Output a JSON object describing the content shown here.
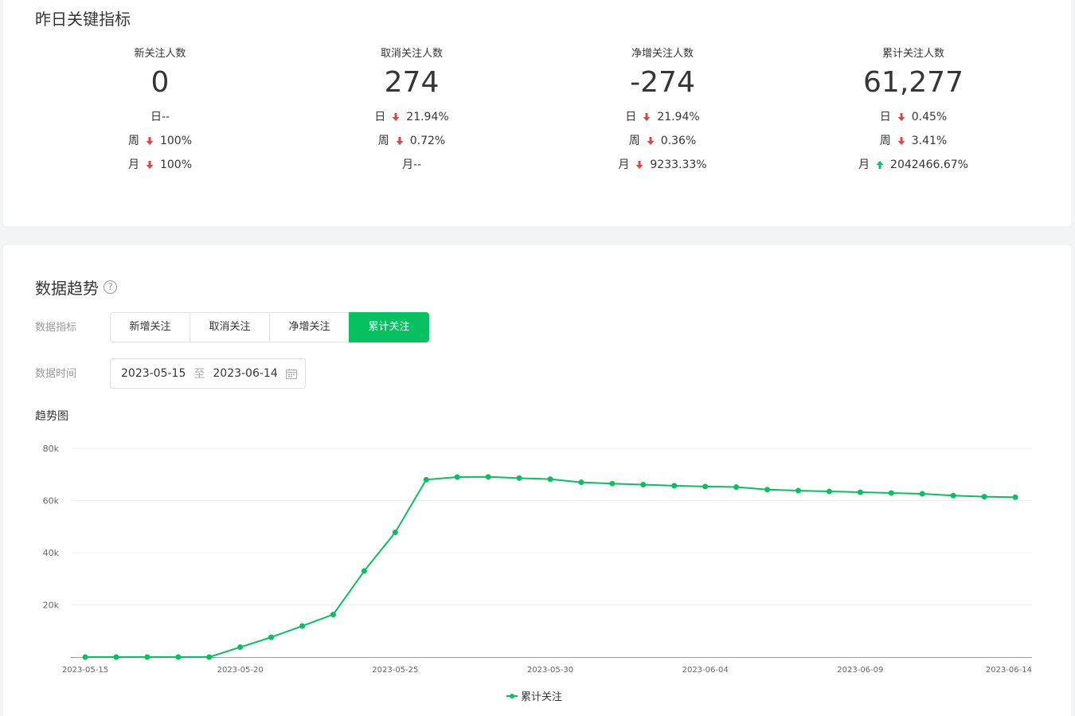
{
  "metrics_section": {
    "title": "昨日关键指标",
    "cards": [
      {
        "title": "新关注人数",
        "value": "0",
        "rows": [
          {
            "label": "日",
            "dir": "none",
            "value": "--"
          },
          {
            "label": "周",
            "dir": "down",
            "value": "100%"
          },
          {
            "label": "月",
            "dir": "down",
            "value": "100%"
          }
        ]
      },
      {
        "title": "取消关注人数",
        "value": "274",
        "rows": [
          {
            "label": "日",
            "dir": "down",
            "value": "21.94%"
          },
          {
            "label": "周",
            "dir": "down",
            "value": "0.72%"
          },
          {
            "label": "月",
            "dir": "none",
            "value": "--"
          }
        ]
      },
      {
        "title": "净增关注人数",
        "value": "-274",
        "rows": [
          {
            "label": "日",
            "dir": "down",
            "value": "21.94%"
          },
          {
            "label": "周",
            "dir": "down",
            "value": "0.36%"
          },
          {
            "label": "月",
            "dir": "down",
            "value": "9233.33%"
          }
        ]
      },
      {
        "title": "累计关注人数",
        "value": "61,277",
        "rows": [
          {
            "label": "日",
            "dir": "down",
            "value": "0.45%"
          },
          {
            "label": "周",
            "dir": "down",
            "value": "3.41%"
          },
          {
            "label": "月",
            "dir": "up",
            "value": "2042466.67%"
          }
        ]
      }
    ]
  },
  "trend_section": {
    "title": "数据趋势",
    "help_icon": "question-circle-icon",
    "metric_label": "数据指标",
    "metric_tabs": [
      "新增关注",
      "取消关注",
      "净增关注",
      "累计关注"
    ],
    "active_tab": 3,
    "time_label": "数据时间",
    "date_start": "2023-05-15",
    "date_sep": "至",
    "date_end": "2023-06-14",
    "calendar_icon": "calendar-icon",
    "chart_title": "趋势图"
  },
  "colors": {
    "accent": "#07c160",
    "down": "#e64340",
    "up": "#07c160"
  },
  "chart_data": {
    "type": "line",
    "x": [
      "2023-05-15",
      "2023-05-16",
      "2023-05-17",
      "2023-05-18",
      "2023-05-19",
      "2023-05-20",
      "2023-05-21",
      "2023-05-22",
      "2023-05-23",
      "2023-05-24",
      "2023-05-25",
      "2023-05-26",
      "2023-05-27",
      "2023-05-28",
      "2023-05-29",
      "2023-05-30",
      "2023-05-31",
      "2023-06-01",
      "2023-06-02",
      "2023-06-03",
      "2023-06-04",
      "2023-06-05",
      "2023-06-06",
      "2023-06-07",
      "2023-06-08",
      "2023-06-09",
      "2023-06-10",
      "2023-06-11",
      "2023-06-12",
      "2023-06-13",
      "2023-06-14"
    ],
    "x_tick_labels": [
      "2023-05-15",
      "2023-05-20",
      "2023-05-25",
      "2023-05-30",
      "2023-06-04",
      "2023-06-09",
      "2023-06-14"
    ],
    "series": [
      {
        "name": "累计关注",
        "values": [
          0,
          0,
          0,
          0,
          0,
          3800,
          7600,
          11900,
          16300,
          33000,
          47800,
          68000,
          69000,
          69100,
          68600,
          68200,
          67000,
          66500,
          66100,
          65700,
          65400,
          65200,
          64200,
          63800,
          63500,
          63200,
          62900,
          62600,
          61900,
          61500,
          61277
        ]
      }
    ],
    "ylim": [
      0,
      80000
    ],
    "yticks": [
      20000,
      40000,
      60000,
      80000
    ],
    "ytick_labels": [
      "20k",
      "40k",
      "60k",
      "80k"
    ],
    "grid": true,
    "legend": "bottom-center"
  }
}
